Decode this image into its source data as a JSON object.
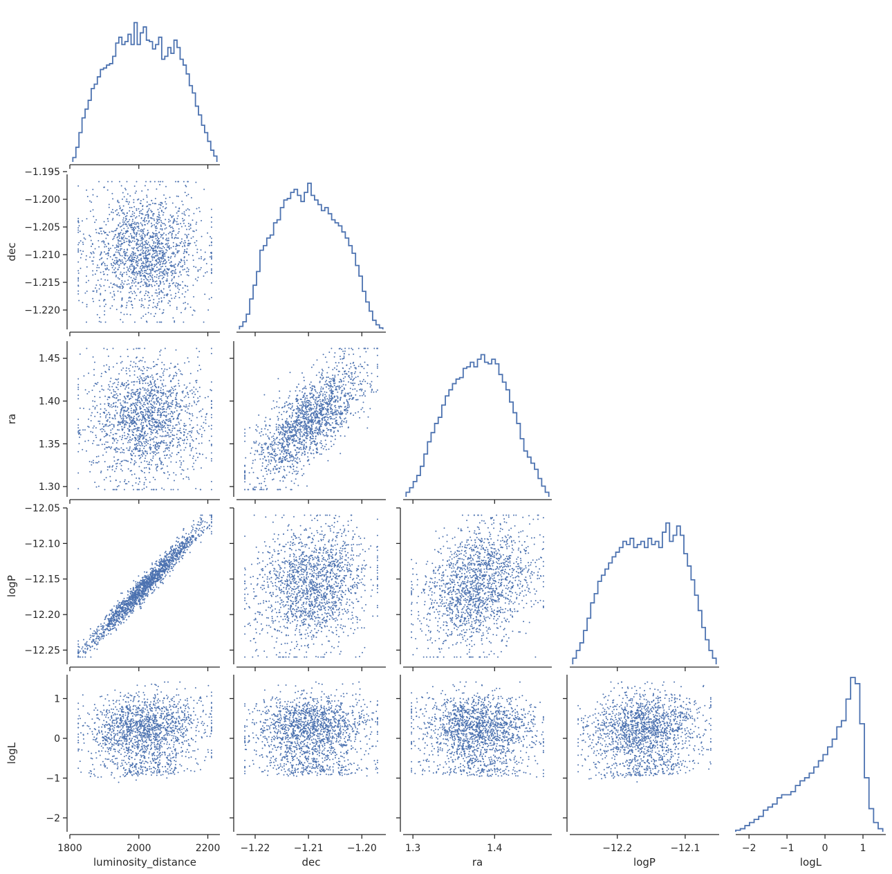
{
  "chart_data": {
    "type": "scatter",
    "layout": "corner-pair-plot",
    "title": "",
    "variables": [
      "luminosity_distance",
      "dec",
      "ra",
      "logP",
      "logL"
    ],
    "variable_labels": [
      "luminosity_distance",
      "dec",
      "ra",
      "logP",
      "logL"
    ],
    "ranges": {
      "luminosity_distance": [
        1800,
        2235
      ],
      "dec": [
        -1.2235,
        -1.1955
      ],
      "ra": [
        1.288,
        1.47
      ],
      "logP": [
        -12.27,
        -12.05
      ],
      "logL": [
        -2.35,
        1.6
      ]
    },
    "ticks": {
      "luminosity_distance": {
        "values": [
          1800,
          2000,
          2200
        ],
        "labels": [
          "1800",
          "2000",
          "2200"
        ]
      },
      "dec": {
        "values": [
          -1.22,
          -1.21,
          -1.2
        ],
        "labels": [
          "−1.22",
          "−1.21",
          "−1.20"
        ]
      },
      "dec_y": {
        "values": [
          -1.195,
          -1.2,
          -1.205,
          -1.21,
          -1.215,
          -1.22
        ],
        "labels": [
          "−1.195",
          "−1.200",
          "−1.205",
          "−1.210",
          "−1.215",
          "−1.220"
        ]
      },
      "ra": {
        "values": [
          1.3,
          1.4
        ],
        "labels": [
          "1.3",
          "1.4"
        ]
      },
      "ra_y": {
        "values": [
          1.45,
          1.4,
          1.35,
          1.3
        ],
        "labels": [
          "1.45",
          "1.40",
          "1.35",
          "1.30"
        ]
      },
      "logP": {
        "values": [
          -12.2,
          -12.1
        ],
        "labels": [
          "−12.2",
          "−12.1"
        ]
      },
      "logP_y": {
        "values": [
          -12.05,
          -12.1,
          -12.15,
          -12.2,
          -12.25
        ],
        "labels": [
          "−12.05",
          "−12.10",
          "−12.15",
          "−12.20",
          "−12.25"
        ]
      },
      "logL": {
        "values": [
          -2,
          -1,
          0,
          1
        ],
        "labels": [
          "−2",
          "−1",
          "0",
          "1"
        ]
      },
      "logL_y": {
        "values": [
          1,
          0,
          -1,
          -2
        ],
        "labels": [
          "1",
          "0",
          "−1",
          "−2"
        ]
      }
    },
    "histograms": {
      "luminosity_distance": [
        0.03,
        0.1,
        0.2,
        0.3,
        0.36,
        0.42,
        0.5,
        0.53,
        0.58,
        0.63,
        0.64,
        0.66,
        0.67,
        0.72,
        0.81,
        0.85,
        0.8,
        0.82,
        0.87,
        0.8,
        0.95,
        0.8,
        0.88,
        0.92,
        0.83,
        0.82,
        0.77,
        0.8,
        0.85,
        0.7,
        0.72,
        0.78,
        0.74,
        0.83,
        0.78,
        0.7,
        0.66,
        0.6,
        0.52,
        0.47,
        0.38,
        0.32,
        0.25,
        0.2,
        0.14,
        0.08,
        0.04
      ],
      "dec": [
        0.02,
        0.05,
        0.1,
        0.2,
        0.29,
        0.38,
        0.52,
        0.55,
        0.6,
        0.62,
        0.7,
        0.72,
        0.8,
        0.85,
        0.86,
        0.9,
        0.92,
        0.88,
        0.84,
        0.9,
        0.96,
        0.88,
        0.85,
        0.82,
        0.78,
        0.8,
        0.76,
        0.72,
        0.7,
        0.68,
        0.64,
        0.6,
        0.55,
        0.5,
        0.42,
        0.35,
        0.25,
        0.18,
        0.12,
        0.06,
        0.03,
        0.01
      ],
      "ra": [
        0.03,
        0.06,
        0.1,
        0.14,
        0.2,
        0.28,
        0.36,
        0.42,
        0.48,
        0.52,
        0.6,
        0.66,
        0.7,
        0.74,
        0.77,
        0.78,
        0.84,
        0.85,
        0.88,
        0.85,
        0.9,
        0.93,
        0.88,
        0.87,
        0.9,
        0.87,
        0.8,
        0.75,
        0.7,
        0.62,
        0.55,
        0.48,
        0.38,
        0.3,
        0.26,
        0.22,
        0.18,
        0.12,
        0.07,
        0.03
      ],
      "logP": [
        0.04,
        0.09,
        0.14,
        0.22,
        0.3,
        0.4,
        0.46,
        0.54,
        0.58,
        0.62,
        0.66,
        0.7,
        0.73,
        0.76,
        0.8,
        0.78,
        0.82,
        0.76,
        0.78,
        0.8,
        0.76,
        0.82,
        0.78,
        0.8,
        0.76,
        0.86,
        0.92,
        0.8,
        0.84,
        0.9,
        0.84,
        0.72,
        0.64,
        0.55,
        0.45,
        0.35,
        0.24,
        0.16,
        0.09,
        0.04
      ],
      "logL": [
        0.01,
        0.02,
        0.04,
        0.06,
        0.08,
        0.1,
        0.14,
        0.16,
        0.18,
        0.22,
        0.24,
        0.24,
        0.26,
        0.3,
        0.33,
        0.35,
        0.38,
        0.42,
        0.46,
        0.5,
        0.55,
        0.6,
        0.68,
        0.72,
        0.86,
        1.0,
        0.96,
        0.7,
        0.35,
        0.15,
        0.06,
        0.02
      ]
    },
    "scatter_pairs": [
      {
        "x": "luminosity_distance",
        "y": "dec",
        "correlation": 0.0
      },
      {
        "x": "luminosity_distance",
        "y": "ra",
        "correlation": 0.0
      },
      {
        "x": "dec",
        "y": "ra",
        "correlation": 0.75
      },
      {
        "x": "luminosity_distance",
        "y": "logP",
        "correlation": 0.98
      },
      {
        "x": "dec",
        "y": "logP",
        "correlation": 0.1
      },
      {
        "x": "ra",
        "y": "logP",
        "correlation": 0.3
      },
      {
        "x": "luminosity_distance",
        "y": "logL",
        "correlation": 0.3
      },
      {
        "x": "dec",
        "y": "logL",
        "correlation": 0.0
      },
      {
        "x": "ra",
        "y": "logL",
        "correlation": -0.1
      },
      {
        "x": "logP",
        "y": "logL",
        "correlation": 0.3
      }
    ],
    "colors": {
      "points": "#4c72b0",
      "line": "#4c72b0",
      "axis": "#262626"
    },
    "grid": false,
    "legend": "none"
  }
}
